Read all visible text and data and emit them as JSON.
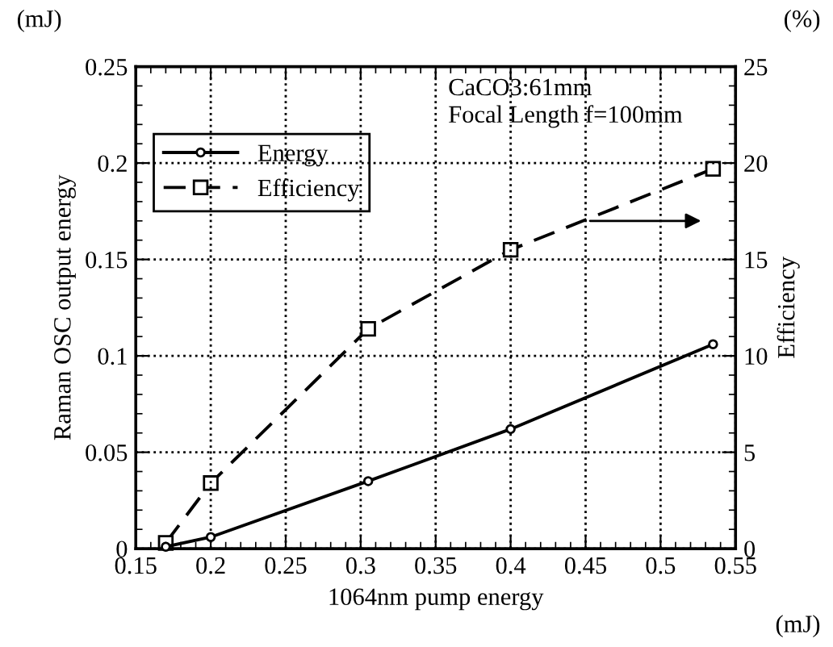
{
  "chart_data": {
    "type": "line",
    "xlabel": "1064nm pump energy",
    "ylabel": "Raman OSC output energy",
    "y2label": "Efficiency",
    "x": [
      0.17,
      0.2,
      0.305,
      0.4,
      0.535
    ],
    "series": [
      {
        "name": "Energy",
        "color": "#000000",
        "values": [
          0.001,
          0.006,
          0.035,
          0.062,
          0.106
        ],
        "marker": "circle",
        "line_style": "solid"
      },
      {
        "name": "Efficiency",
        "color": "#000000",
        "values": [
          0.3,
          3.4,
          11.4,
          15.5,
          19.7
        ],
        "marker": "square",
        "line_style": "dashed",
        "axis": "y2"
      }
    ],
    "xlim": [
      0.15,
      0.55
    ],
    "xticks": [
      0.15,
      0.2,
      0.25,
      0.3,
      0.35,
      0.4,
      0.45,
      0.5,
      0.55
    ],
    "ylim": [
      0,
      0.25
    ],
    "yticks": [
      0,
      0.05,
      0.1,
      0.15,
      0.2,
      0.25
    ],
    "y2lim": [
      0,
      25
    ],
    "y2ticks": [
      0,
      5,
      10,
      15,
      20,
      25
    ],
    "annotations": [
      "(mJ)",
      "(%)",
      "(mJ)",
      "CaCO3:61mm",
      "Focal Length f=100mm"
    ],
    "grid": true,
    "legend": "top left"
  }
}
